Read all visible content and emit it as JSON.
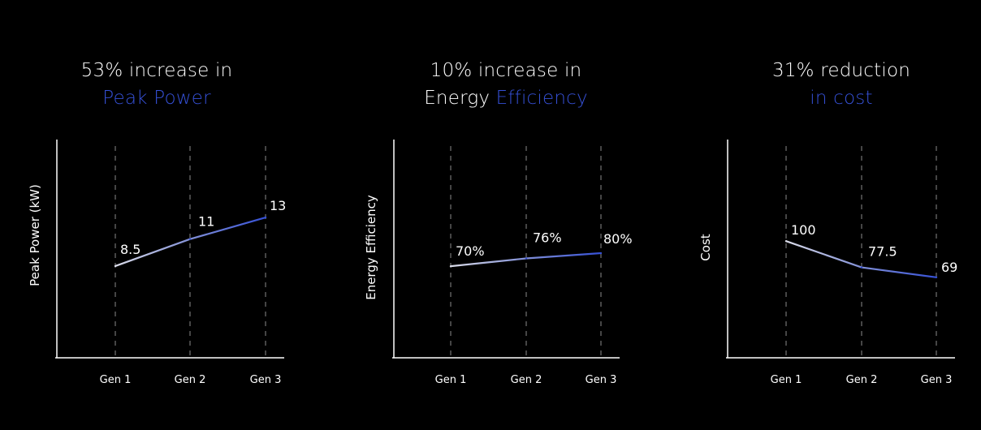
{
  "colors": {
    "background": "#000000",
    "text": "#ffffff",
    "accent": "#3550d6",
    "line_start": "#d9dbe8",
    "grid": "#8a8a8a"
  },
  "chart_data": [
    {
      "type": "line",
      "title_lines": [
        [
          {
            "text": "53% increase in",
            "accent": false
          }
        ],
        [
          {
            "text": "Peak Power",
            "accent": true
          }
        ]
      ],
      "xlabel": "",
      "ylabel": "Peak Power (kW)",
      "categories": [
        "Gen 1",
        "Gen 2",
        "Gen 3"
      ],
      "values": [
        8.5,
        11,
        13
      ],
      "labels": [
        "8.5",
        "11",
        "13"
      ],
      "ylim": [
        0,
        20
      ],
      "grid": "vertical dashed"
    },
    {
      "type": "line",
      "title_lines": [
        [
          {
            "text": "10% increase in",
            "accent": false
          }
        ],
        [
          {
            "text": "Energy ",
            "accent": false
          },
          {
            "text": "Efficiency",
            "accent": true
          }
        ]
      ],
      "xlabel": "",
      "ylabel": "Energy Efficiency",
      "categories": [
        "Gen 1",
        "Gen 2",
        "Gen 3"
      ],
      "values": [
        70,
        76,
        80
      ],
      "labels": [
        "70%",
        "76%",
        "80%"
      ],
      "ylim": [
        0,
        165
      ],
      "grid": "vertical dashed"
    },
    {
      "type": "line",
      "title_lines": [
        [
          {
            "text": "31% reduction",
            "accent": false
          }
        ],
        [
          {
            "text": "in cost",
            "accent": true
          }
        ]
      ],
      "xlabel": "",
      "ylabel": "Cost",
      "categories": [
        "Gen 1",
        "Gen 2",
        "Gen 3"
      ],
      "values": [
        100,
        77.5,
        69
      ],
      "labels": [
        "100",
        "77.5",
        "69"
      ],
      "ylim": [
        0,
        185
      ],
      "grid": "vertical dashed"
    }
  ]
}
